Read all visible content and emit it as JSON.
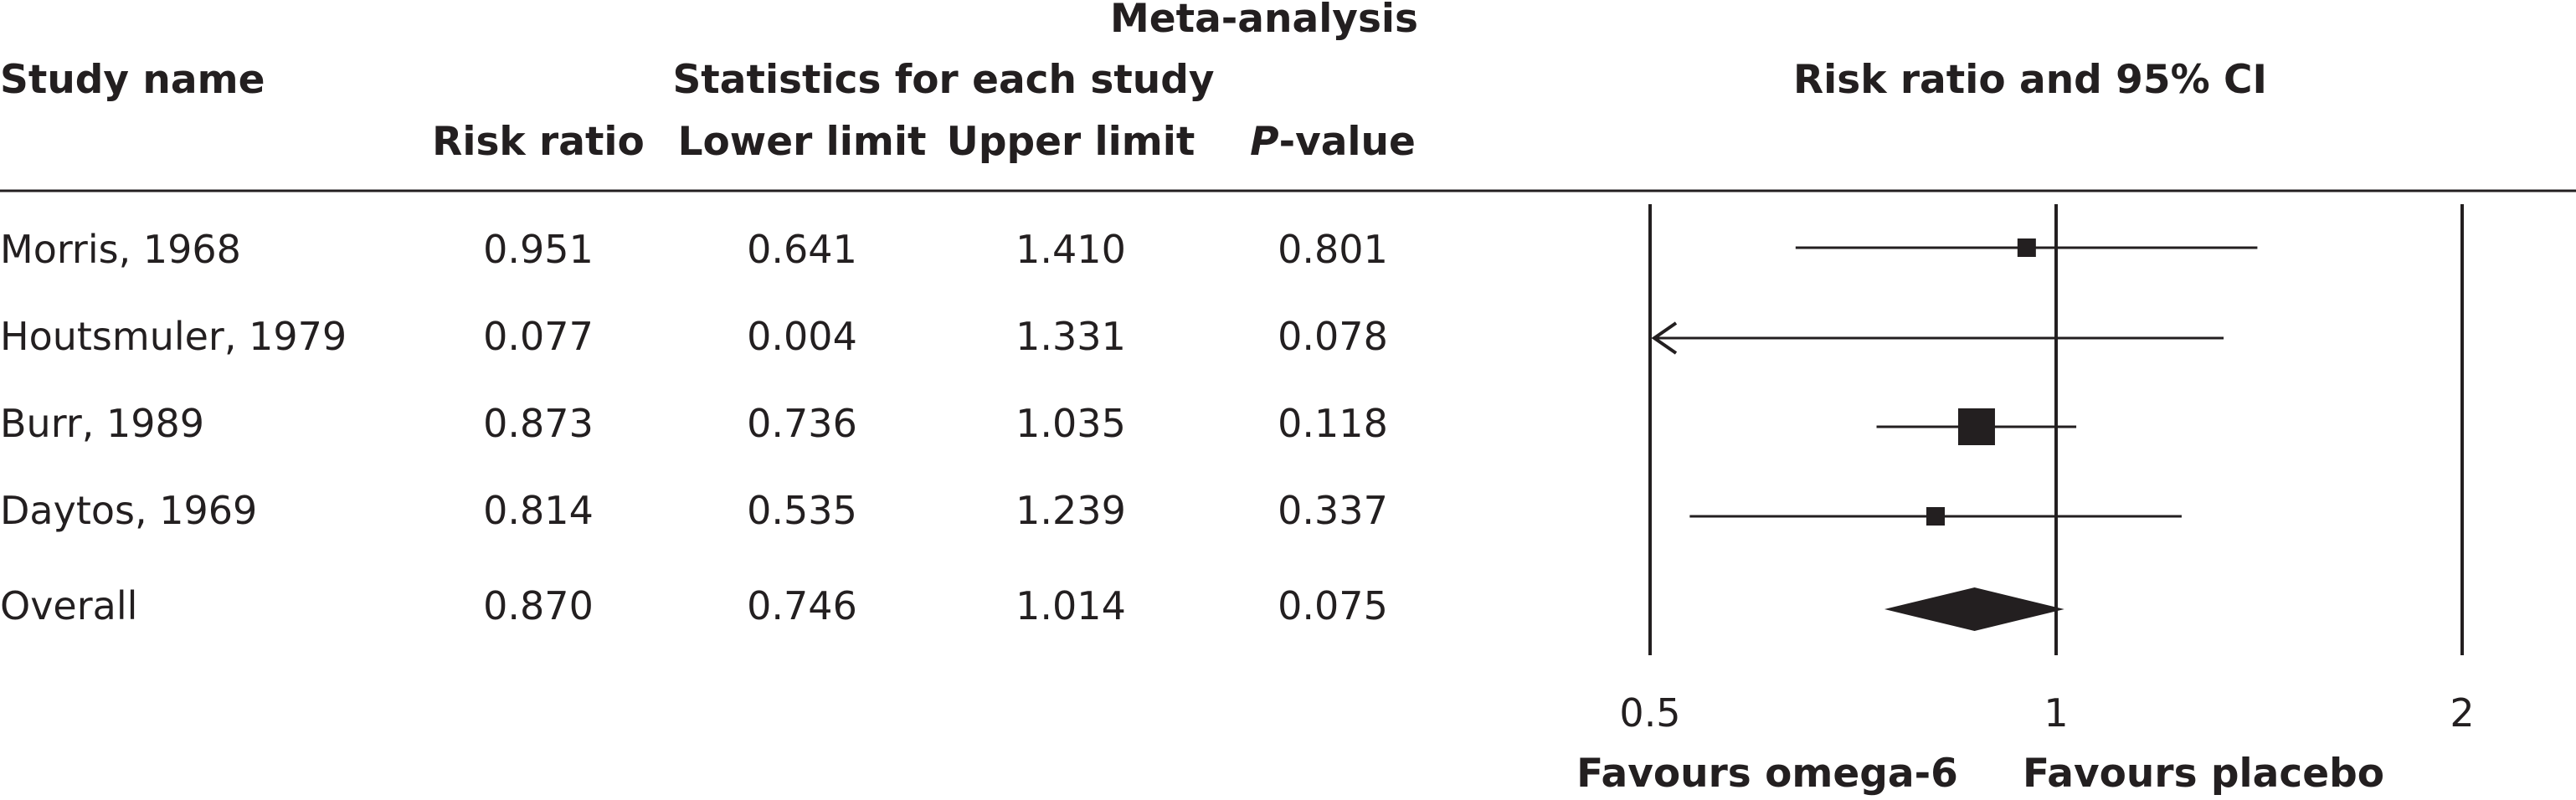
{
  "header": {
    "title": "Meta-analysis",
    "study_col": "Study name",
    "stats_group": "Statistics for each study",
    "plot_group": "Risk ratio and 95% CI",
    "col_rr": "Risk ratio",
    "col_lower": "Lower limit",
    "col_upper": "Upper limit",
    "col_p_italic": "P",
    "col_p_rest": "-value"
  },
  "rows": [
    {
      "name": "Morris, 1968",
      "rr": "0.951",
      "lower": "0.641",
      "upper": "1.410",
      "p": "0.801"
    },
    {
      "name": "Houtsmuler, 1979",
      "rr": "0.077",
      "lower": "0.004",
      "upper": "1.331",
      "p": "0.078"
    },
    {
      "name": "Burr, 1989",
      "rr": "0.873",
      "lower": "0.736",
      "upper": "1.035",
      "p": "0.118"
    },
    {
      "name": "Daytos, 1969",
      "rr": "0.814",
      "lower": "0.535",
      "upper": "1.239",
      "p": "0.337"
    },
    {
      "name": "Overall",
      "rr": "0.870",
      "lower": "0.746",
      "upper": "1.014",
      "p": "0.075"
    }
  ],
  "footer": {
    "favours_left": "Favours omega-6",
    "favours_right": "Favours placebo"
  },
  "chart_data": {
    "type": "forest",
    "title": "Meta-analysis",
    "scale": "log",
    "xlim": [
      0.5,
      2
    ],
    "xticks": [
      0.5,
      1,
      2
    ],
    "xtick_labels": [
      "0.5",
      "1",
      "2"
    ],
    "reference_line": 1,
    "studies": [
      {
        "name": "Morris, 1968",
        "rr": 0.951,
        "lower": 0.641,
        "upper": 1.41,
        "weight": "small"
      },
      {
        "name": "Houtsmuler, 1979",
        "rr": 0.077,
        "lower": 0.004,
        "upper": 1.331,
        "weight": "none",
        "truncated_left": true
      },
      {
        "name": "Burr, 1989",
        "rr": 0.873,
        "lower": 0.736,
        "upper": 1.035,
        "weight": "large"
      },
      {
        "name": "Daytos, 1969",
        "rr": 0.814,
        "lower": 0.535,
        "upper": 1.239,
        "weight": "small"
      }
    ],
    "overall": {
      "name": "Overall",
      "rr": 0.87,
      "lower": 0.746,
      "upper": 1.014
    }
  }
}
